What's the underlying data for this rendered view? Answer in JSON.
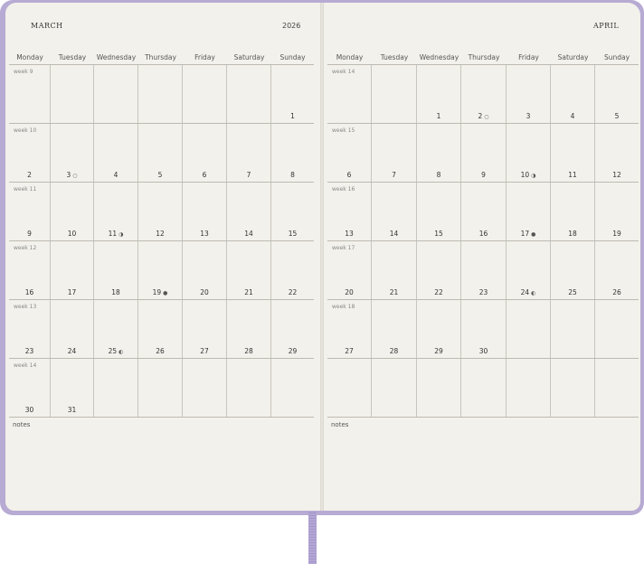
{
  "days": [
    "Monday",
    "Tuesday",
    "Wednesday",
    "Thursday",
    "Friday",
    "Saturday",
    "Sunday"
  ],
  "notes_label": "notes",
  "left": {
    "month": "MARCH",
    "year": "2026",
    "rows": [
      {
        "week": "week 9",
        "days": [
          "",
          "",
          "",
          "",
          "",
          "",
          "1"
        ]
      },
      {
        "week": "week 10",
        "days": [
          "2",
          "3",
          "4",
          "5",
          "6",
          "7",
          "8"
        ]
      },
      {
        "week": "week 11",
        "days": [
          "9",
          "10",
          "11",
          "12",
          "13",
          "14",
          "15"
        ]
      },
      {
        "week": "week 12",
        "days": [
          "16",
          "17",
          "18",
          "19",
          "20",
          "21",
          "22"
        ]
      },
      {
        "week": "week 13",
        "days": [
          "23",
          "24",
          "25",
          "26",
          "27",
          "28",
          "29"
        ]
      },
      {
        "week": "week 14",
        "days": [
          "30",
          "31",
          "",
          "",
          "",
          "",
          ""
        ]
      }
    ],
    "moons": {
      "3": "○",
      "11": "◑",
      "19": "●",
      "25": "◐"
    }
  },
  "right": {
    "month": "APRIL",
    "rows": [
      {
        "week": "week 14",
        "days": [
          "",
          "",
          "1",
          "2",
          "3",
          "4",
          "5"
        ]
      },
      {
        "week": "week 15",
        "days": [
          "6",
          "7",
          "8",
          "9",
          "10",
          "11",
          "12"
        ]
      },
      {
        "week": "week 16",
        "days": [
          "13",
          "14",
          "15",
          "16",
          "17",
          "18",
          "19"
        ]
      },
      {
        "week": "week 17",
        "days": [
          "20",
          "21",
          "22",
          "23",
          "24",
          "25",
          "26"
        ]
      },
      {
        "week": "week 18",
        "days": [
          "27",
          "28",
          "29",
          "30",
          "",
          "",
          ""
        ]
      }
    ],
    "moons": {
      "2": "○",
      "10": "◑",
      "17": "●",
      "24": "◐"
    }
  },
  "colors": {
    "cover": "#b7abd3",
    "paper": "#f3f1eb",
    "ribbon": "#b3a6d4"
  }
}
